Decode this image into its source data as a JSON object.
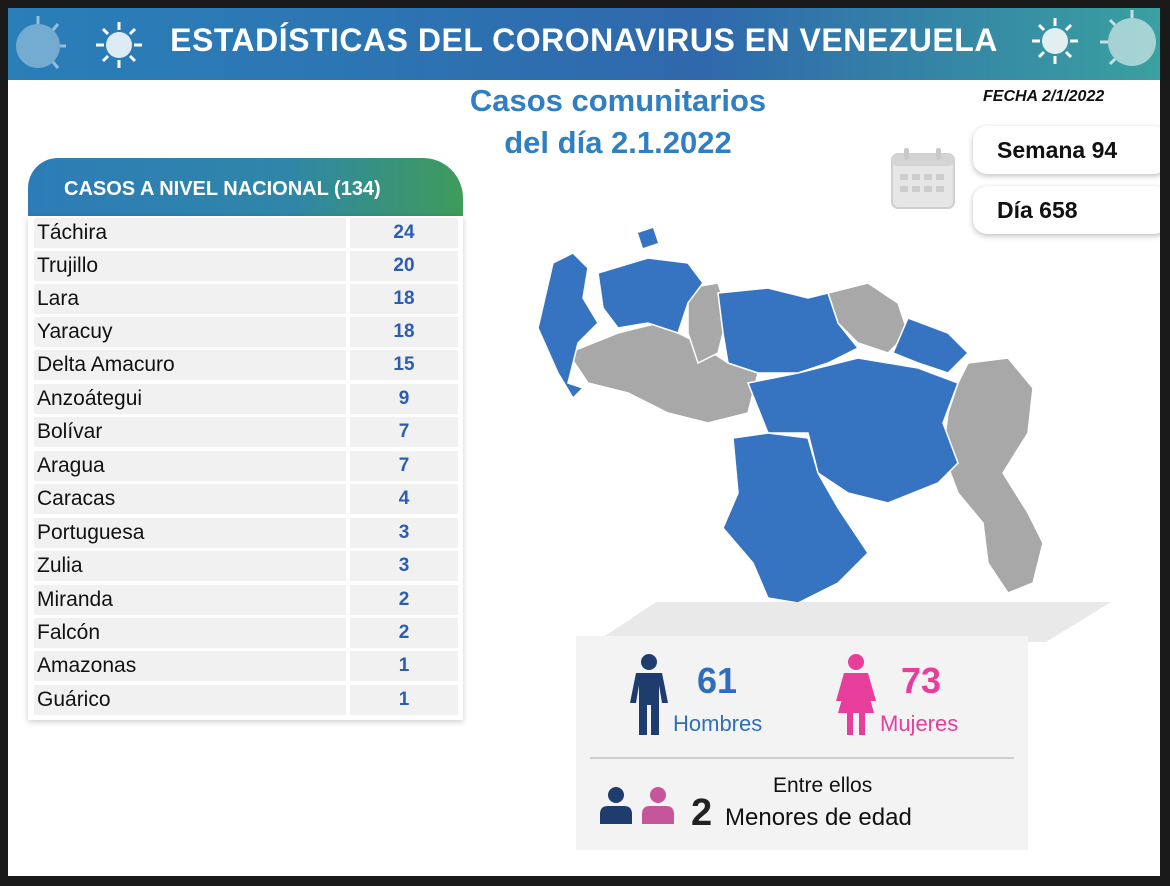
{
  "header": {
    "title": "ESTADÍSTICAS DEL CORONAVIRUS EN VENEZUELA"
  },
  "headline": {
    "line1": "Casos comunitarios",
    "line2": "del día 2.1.2022"
  },
  "date": "FECHA 2/1/2022",
  "calendar": {
    "week": "Semana 94",
    "day": "Día 658"
  },
  "table": {
    "title": "CASOS A NIVEL NACIONAL  (134)",
    "rows": [
      {
        "state": "Táchira",
        "cases": "24"
      },
      {
        "state": "Trujillo",
        "cases": "20"
      },
      {
        "state": "Lara",
        "cases": "18"
      },
      {
        "state": "Yaracuy",
        "cases": "18"
      },
      {
        "state": "Delta Amacuro",
        "cases": "15"
      },
      {
        "state": "Anzoátegui",
        "cases": "9"
      },
      {
        "state": "Bolívar",
        "cases": "7"
      },
      {
        "state": "Aragua",
        "cases": "7"
      },
      {
        "state": "Caracas",
        "cases": "4"
      },
      {
        "state": "Portuguesa",
        "cases": "3"
      },
      {
        "state": "Zulia",
        "cases": "3"
      },
      {
        "state": "Miranda",
        "cases": "2"
      },
      {
        "state": "Falcón",
        "cases": "2"
      },
      {
        "state": "Amazonas",
        "cases": "1"
      },
      {
        "state": "Guárico",
        "cases": "1"
      }
    ]
  },
  "gender": {
    "men_count": "61",
    "men_label": "Hombres",
    "women_count": "73",
    "women_label": "Mujeres"
  },
  "minors": {
    "intro": "Entre ellos",
    "count": "2",
    "label": "Menores de edad"
  },
  "colors": {
    "blue": "#2f6fba",
    "pink": "#e83e9b",
    "navy": "#1f3c6e",
    "map_blue": "#3674c2",
    "map_gray": "#a8a8a8"
  }
}
